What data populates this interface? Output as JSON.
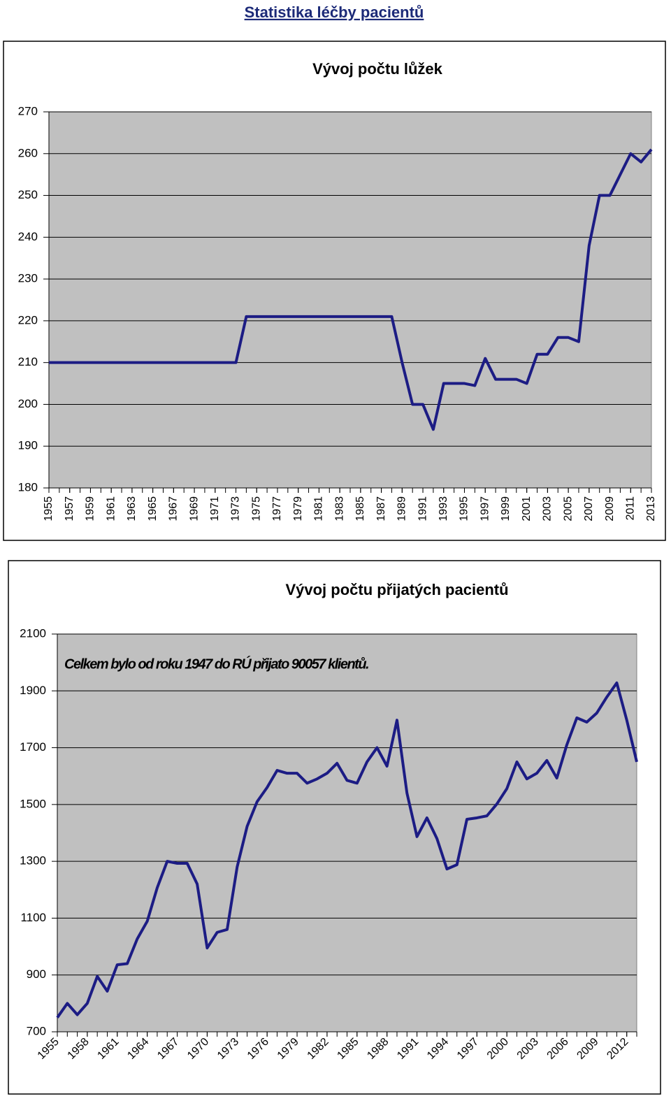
{
  "header": {
    "title": "Statistika léčby pacientů"
  },
  "chart_data": [
    {
      "type": "line",
      "title": "Vývoj počtu lůžek",
      "x": [
        1955,
        1956,
        1957,
        1958,
        1959,
        1960,
        1961,
        1962,
        1963,
        1964,
        1965,
        1966,
        1967,
        1968,
        1969,
        1970,
        1971,
        1972,
        1973,
        1974,
        1975,
        1976,
        1977,
        1978,
        1979,
        1980,
        1981,
        1982,
        1983,
        1984,
        1985,
        1986,
        1987,
        1988,
        1989,
        1990,
        1991,
        1992,
        1993,
        1994,
        1995,
        1996,
        1997,
        1998,
        1999,
        2000,
        2001,
        2002,
        2003,
        2004,
        2005,
        2006,
        2007,
        2008,
        2009,
        2010,
        2011,
        2012,
        2013
      ],
      "series": [
        {
          "color": "#1c1c84",
          "values": [
            210,
            210,
            210,
            210,
            210,
            210,
            210,
            210,
            210,
            210,
            210,
            210,
            210,
            210,
            210,
            210,
            210,
            210,
            210,
            221,
            221,
            221,
            221,
            221,
            221,
            221,
            221,
            221,
            221,
            221,
            221,
            221,
            221,
            221,
            210,
            200,
            200,
            194,
            205,
            205,
            205,
            204.5,
            211,
            206,
            206,
            206,
            205,
            212,
            212,
            216,
            216,
            215,
            238,
            250,
            250,
            255,
            260,
            258,
            261
          ]
        }
      ],
      "xlim": [
        1955,
        2013
      ],
      "xticks": [
        1955,
        1957,
        1959,
        1961,
        1963,
        1965,
        1967,
        1969,
        1971,
        1973,
        1975,
        1977,
        1979,
        1981,
        1983,
        1985,
        1987,
        1989,
        1991,
        1993,
        1995,
        1997,
        1999,
        2001,
        2003,
        2005,
        2007,
        2009,
        2011,
        2013
      ],
      "ylim": [
        180,
        270
      ],
      "yticks": [
        180,
        190,
        200,
        210,
        220,
        230,
        240,
        250,
        260,
        270
      ],
      "grid": true
    },
    {
      "type": "line",
      "title": "Vývoj počtu přijatých pacientů",
      "annotation": "Celkem bylo od roku 1947 do RÚ přijato 90057 klientů.",
      "x": [
        1955,
        1956,
        1957,
        1958,
        1959,
        1960,
        1961,
        1962,
        1963,
        1964,
        1965,
        1966,
        1967,
        1968,
        1969,
        1970,
        1971,
        1972,
        1973,
        1974,
        1975,
        1976,
        1977,
        1978,
        1979,
        1980,
        1981,
        1982,
        1983,
        1984,
        1985,
        1986,
        1987,
        1988,
        1989,
        1990,
        1991,
        1992,
        1993,
        1994,
        1995,
        1996,
        1997,
        1998,
        1999,
        2000,
        2001,
        2002,
        2003,
        2004,
        2005,
        2006,
        2007,
        2008,
        2009,
        2010,
        2011,
        2012,
        2013
      ],
      "series": [
        {
          "color": "#1c1c84",
          "values": [
            750,
            800,
            760,
            800,
            895,
            843,
            936,
            940,
            1027,
            1089,
            1207,
            1300,
            1293,
            1293,
            1220,
            995,
            1050,
            1060,
            1280,
            1423,
            1510,
            1560,
            1620,
            1610,
            1610,
            1575,
            1590,
            1610,
            1645,
            1585,
            1575,
            1650,
            1700,
            1635,
            1797,
            1540,
            1387,
            1453,
            1380,
            1273,
            1288,
            1448,
            1453,
            1460,
            1502,
            1556,
            1650,
            1590,
            1610,
            1655,
            1593,
            1710,
            1805,
            1790,
            1822,
            1878,
            1928,
            1797,
            1650
          ]
        }
      ],
      "xlim": [
        1955,
        2013
      ],
      "xticks": [
        1955,
        1958,
        1961,
        1964,
        1967,
        1970,
        1973,
        1976,
        1979,
        1982,
        1985,
        1988,
        1991,
        1994,
        1997,
        2000,
        2003,
        2006,
        2009,
        2012
      ],
      "ylim": [
        700,
        2100
      ],
      "yticks": [
        700,
        900,
        1100,
        1300,
        1500,
        1700,
        1900,
        2100
      ],
      "grid": true
    }
  ]
}
